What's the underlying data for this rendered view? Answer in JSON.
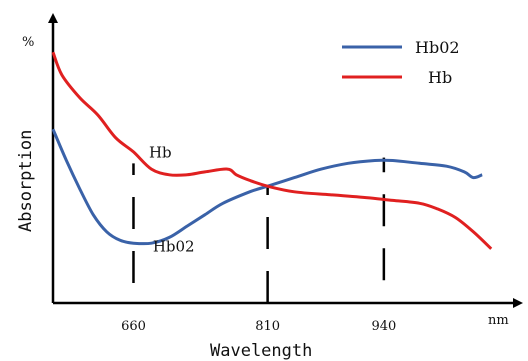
{
  "chart_data": {
    "type": "line",
    "title": "",
    "xlabel": "Wavelength",
    "ylabel": "Absorption",
    "x_unit": "nm",
    "y_unit": "%",
    "x_ticks": [
      660,
      810,
      940
    ],
    "xlim": [
      570,
      1090
    ],
    "ylim": [
      0,
      100
    ],
    "grid": false,
    "legend": "top-right",
    "series": [
      {
        "name": "HbO2",
        "color": "#3a62a8",
        "points": [
          [
            570,
            61
          ],
          [
            585,
            50
          ],
          [
            600,
            40
          ],
          [
            615,
            31
          ],
          [
            630,
            25
          ],
          [
            645,
            22
          ],
          [
            660,
            21
          ],
          [
            680,
            21
          ],
          [
            700,
            23
          ],
          [
            720,
            27
          ],
          [
            740,
            31
          ],
          [
            760,
            35
          ],
          [
            790,
            39
          ],
          [
            810,
            41
          ],
          [
            840,
            44
          ],
          [
            870,
            47
          ],
          [
            900,
            49
          ],
          [
            930,
            50
          ],
          [
            950,
            50
          ],
          [
            980,
            49
          ],
          [
            1010,
            48
          ],
          [
            1030,
            46
          ],
          [
            1040,
            44
          ],
          [
            1050,
            45
          ]
        ]
      },
      {
        "name": "Hb",
        "color": "#e02020",
        "points": [
          [
            570,
            88
          ],
          [
            580,
            80
          ],
          [
            600,
            72
          ],
          [
            620,
            66
          ],
          [
            640,
            58
          ],
          [
            660,
            53
          ],
          [
            680,
            47
          ],
          [
            700,
            45
          ],
          [
            720,
            45
          ],
          [
            740,
            46
          ],
          [
            765,
            47
          ],
          [
            775,
            45
          ],
          [
            790,
            43
          ],
          [
            810,
            41
          ],
          [
            840,
            39
          ],
          [
            880,
            38
          ],
          [
            920,
            37
          ],
          [
            950,
            36
          ],
          [
            980,
            35
          ],
          [
            1000,
            33
          ],
          [
            1020,
            30
          ],
          [
            1040,
            25
          ],
          [
            1060,
            19
          ]
        ]
      }
    ],
    "annotations": [
      {
        "text": "Hb",
        "x": 690,
        "y": 51
      },
      {
        "text": "Hb02",
        "x": 705,
        "y": 18
      }
    ],
    "legend_entries": [
      {
        "label": "Hb02",
        "color": "#3a62a8"
      },
      {
        "label": "Hb",
        "color": "#e02020"
      }
    ],
    "marker_lines": [
      {
        "x": 660,
        "y_from": 7,
        "y_to": 49
      },
      {
        "x": 810,
        "y_from": 0,
        "y_to": 41
      },
      {
        "x": 940,
        "y_from": 8,
        "y_to": 51
      }
    ]
  }
}
